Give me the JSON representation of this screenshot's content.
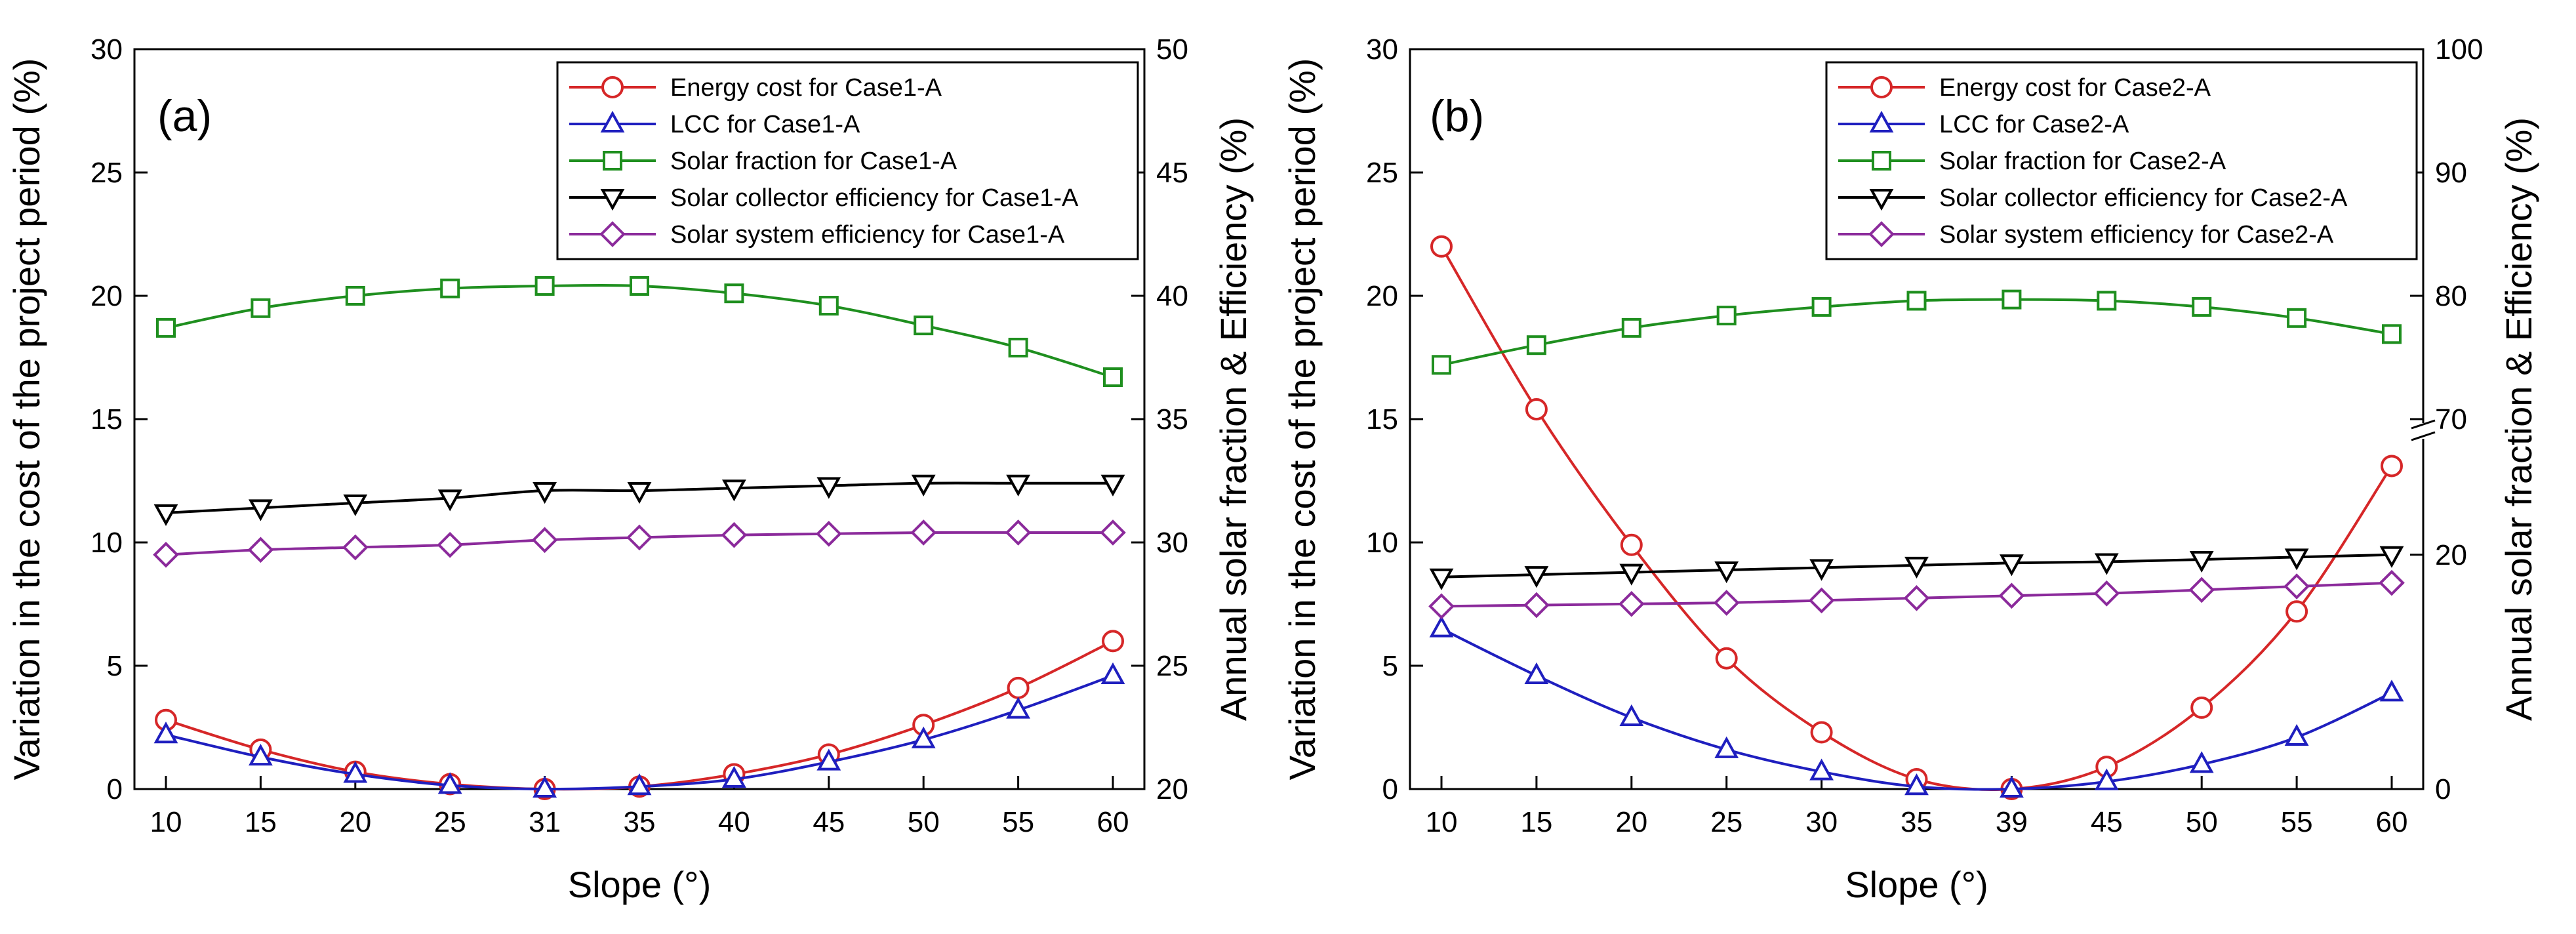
{
  "chart_data": [
    {
      "type": "line",
      "panel_label": "(a)",
      "xlabel": "Slope (°)",
      "ylabel_left": "Variation in the cost of the project period (%)",
      "ylabel_right": "Annual solar fraction & Efficiency (%)",
      "x_ticks": [
        10,
        15,
        20,
        25,
        31,
        35,
        40,
        45,
        50,
        55,
        60
      ],
      "ylim_left": [
        0,
        30
      ],
      "ylim_right": [
        20,
        50
      ],
      "y_ticks_left": [
        0,
        5,
        10,
        15,
        20,
        25,
        30
      ],
      "y_ticks_right": [
        20,
        25,
        30,
        35,
        40,
        45,
        50
      ],
      "legend_position": "top-right",
      "series": [
        {
          "name": "Energy cost for Case1-A",
          "axis": "left",
          "color": "#d62728",
          "marker": "circle",
          "x": [
            10,
            15,
            20,
            25,
            31,
            35,
            40,
            45,
            50,
            55,
            60
          ],
          "values": [
            2.8,
            1.6,
            0.7,
            0.2,
            0.0,
            0.1,
            0.6,
            1.4,
            2.6,
            4.1,
            6.0
          ]
        },
        {
          "name": "LCC for Case1-A",
          "axis": "left",
          "color": "#1f1fbf",
          "marker": "triangle-up",
          "x": [
            10,
            15,
            20,
            25,
            31,
            35,
            40,
            45,
            50,
            55,
            60
          ],
          "values": [
            2.2,
            1.3,
            0.6,
            0.15,
            0.0,
            0.1,
            0.4,
            1.1,
            2.0,
            3.2,
            4.6
          ]
        },
        {
          "name": "Solar fraction for Case1-A",
          "axis": "right",
          "color": "#1f8f1f",
          "marker": "square",
          "x": [
            10,
            15,
            20,
            25,
            31,
            35,
            40,
            45,
            50,
            55,
            60
          ],
          "values": [
            38.7,
            39.5,
            40.0,
            40.3,
            40.4,
            40.4,
            40.1,
            39.6,
            38.8,
            37.9,
            36.7
          ]
        },
        {
          "name": "Solar collector efficiency for Case1-A",
          "axis": "right",
          "color": "#000000",
          "marker": "triangle-down",
          "x": [
            10,
            15,
            20,
            25,
            31,
            35,
            40,
            45,
            50,
            55,
            60
          ],
          "values": [
            31.2,
            31.4,
            31.6,
            31.8,
            32.1,
            32.1,
            32.2,
            32.3,
            32.4,
            32.4,
            32.4
          ]
        },
        {
          "name": "Solar system efficiency for Case1-A",
          "axis": "right",
          "color": "#8b2a9b",
          "marker": "diamond",
          "x": [
            10,
            15,
            20,
            25,
            31,
            35,
            40,
            45,
            50,
            55,
            60
          ],
          "values": [
            29.5,
            29.7,
            29.8,
            29.9,
            30.1,
            30.2,
            30.3,
            30.35,
            30.4,
            30.4,
            30.4
          ]
        }
      ]
    },
    {
      "type": "line",
      "panel_label": "(b)",
      "xlabel": "Slope (°)",
      "ylabel_left": "Variation in the cost of the project period (%)",
      "ylabel_right": "Annual solar fraction & Efficiency (%)",
      "x_ticks": [
        10,
        15,
        20,
        25,
        30,
        35,
        39,
        45,
        50,
        55,
        60
      ],
      "ylim_left": [
        0,
        30
      ],
      "y_ticks_left": [
        0,
        5,
        10,
        15,
        20,
        25,
        30
      ],
      "right_axis_broken": true,
      "right_axis_lower_range": [
        0,
        20
      ],
      "right_axis_upper_range": [
        70,
        100
      ],
      "y_ticks_right": [
        0,
        20,
        70,
        80,
        90,
        100
      ],
      "legend_position": "top-right",
      "series": [
        {
          "name": "Energy cost for Case2-A",
          "axis": "left",
          "color": "#d62728",
          "marker": "circle",
          "x": [
            10,
            15,
            20,
            25,
            30,
            35,
            39,
            45,
            50,
            55,
            60
          ],
          "values": [
            22.0,
            15.4,
            9.9,
            5.3,
            2.3,
            0.4,
            0.0,
            0.9,
            3.3,
            7.2,
            13.1
          ]
        },
        {
          "name": "LCC for Case2-A",
          "axis": "left",
          "color": "#1f1fbf",
          "marker": "triangle-up",
          "x": [
            10,
            15,
            20,
            25,
            30,
            35,
            39,
            45,
            50,
            55,
            60
          ],
          "values": [
            6.5,
            4.6,
            2.9,
            1.6,
            0.7,
            0.1,
            0.0,
            0.3,
            1.0,
            2.1,
            3.9
          ]
        },
        {
          "name": "Solar fraction for Case2-A",
          "axis": "right",
          "color": "#1f8f1f",
          "marker": "square",
          "x": [
            10,
            15,
            20,
            25,
            30,
            35,
            39,
            45,
            50,
            55,
            60
          ],
          "values": [
            74.4,
            76.0,
            77.4,
            78.4,
            79.1,
            79.6,
            79.7,
            79.6,
            79.1,
            78.2,
            76.9
          ]
        },
        {
          "name": "Solar collector efficiency for Case2-A",
          "axis": "right",
          "color": "#000000",
          "marker": "triangle-down",
          "x": [
            10,
            15,
            20,
            25,
            30,
            35,
            39,
            45,
            50,
            55,
            60
          ],
          "values": [
            18.1,
            18.3,
            18.5,
            18.7,
            18.9,
            19.1,
            19.3,
            19.4,
            19.6,
            19.8,
            20.0
          ]
        },
        {
          "name": "Solar system efficiency for Case2-A",
          "axis": "right",
          "color": "#8b2a9b",
          "marker": "diamond",
          "x": [
            10,
            15,
            20,
            25,
            30,
            35,
            39,
            45,
            50,
            55,
            60
          ],
          "values": [
            15.6,
            15.7,
            15.8,
            15.9,
            16.1,
            16.3,
            16.5,
            16.7,
            17.0,
            17.3,
            17.6
          ]
        }
      ]
    }
  ]
}
